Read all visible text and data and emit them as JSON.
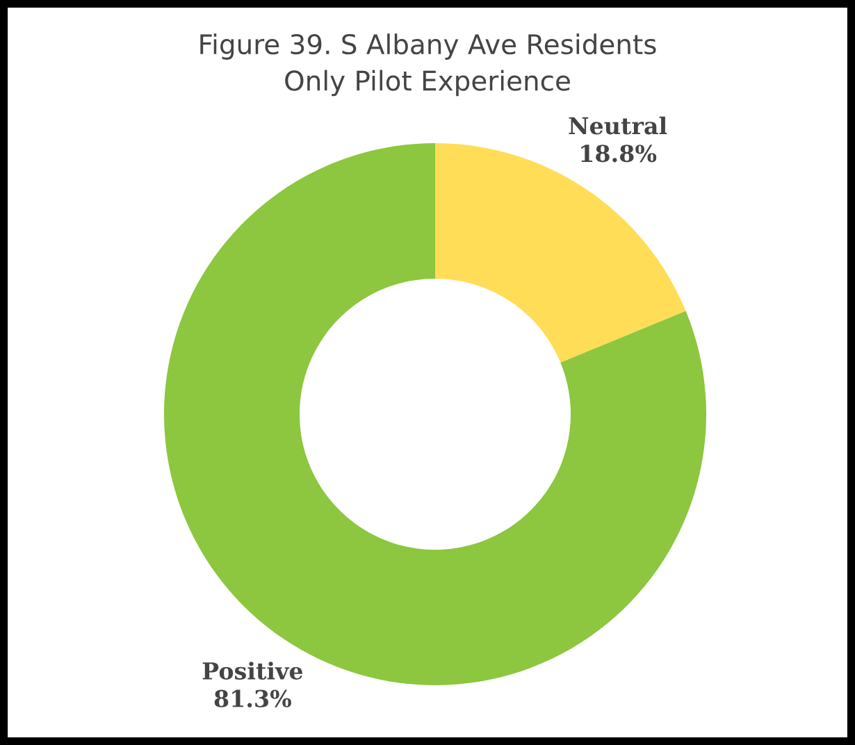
{
  "chart_data": {
    "type": "donut",
    "title": "Figure 39. S Albany Ave Residents\nOnly Pilot Experience",
    "categories": [
      "Neutral",
      "Positive"
    ],
    "values": [
      18.8,
      81.3
    ],
    "colors": [
      "#ffdd57",
      "#8dc63f"
    ],
    "value_labels": [
      "18.8%",
      "81.3%"
    ]
  }
}
